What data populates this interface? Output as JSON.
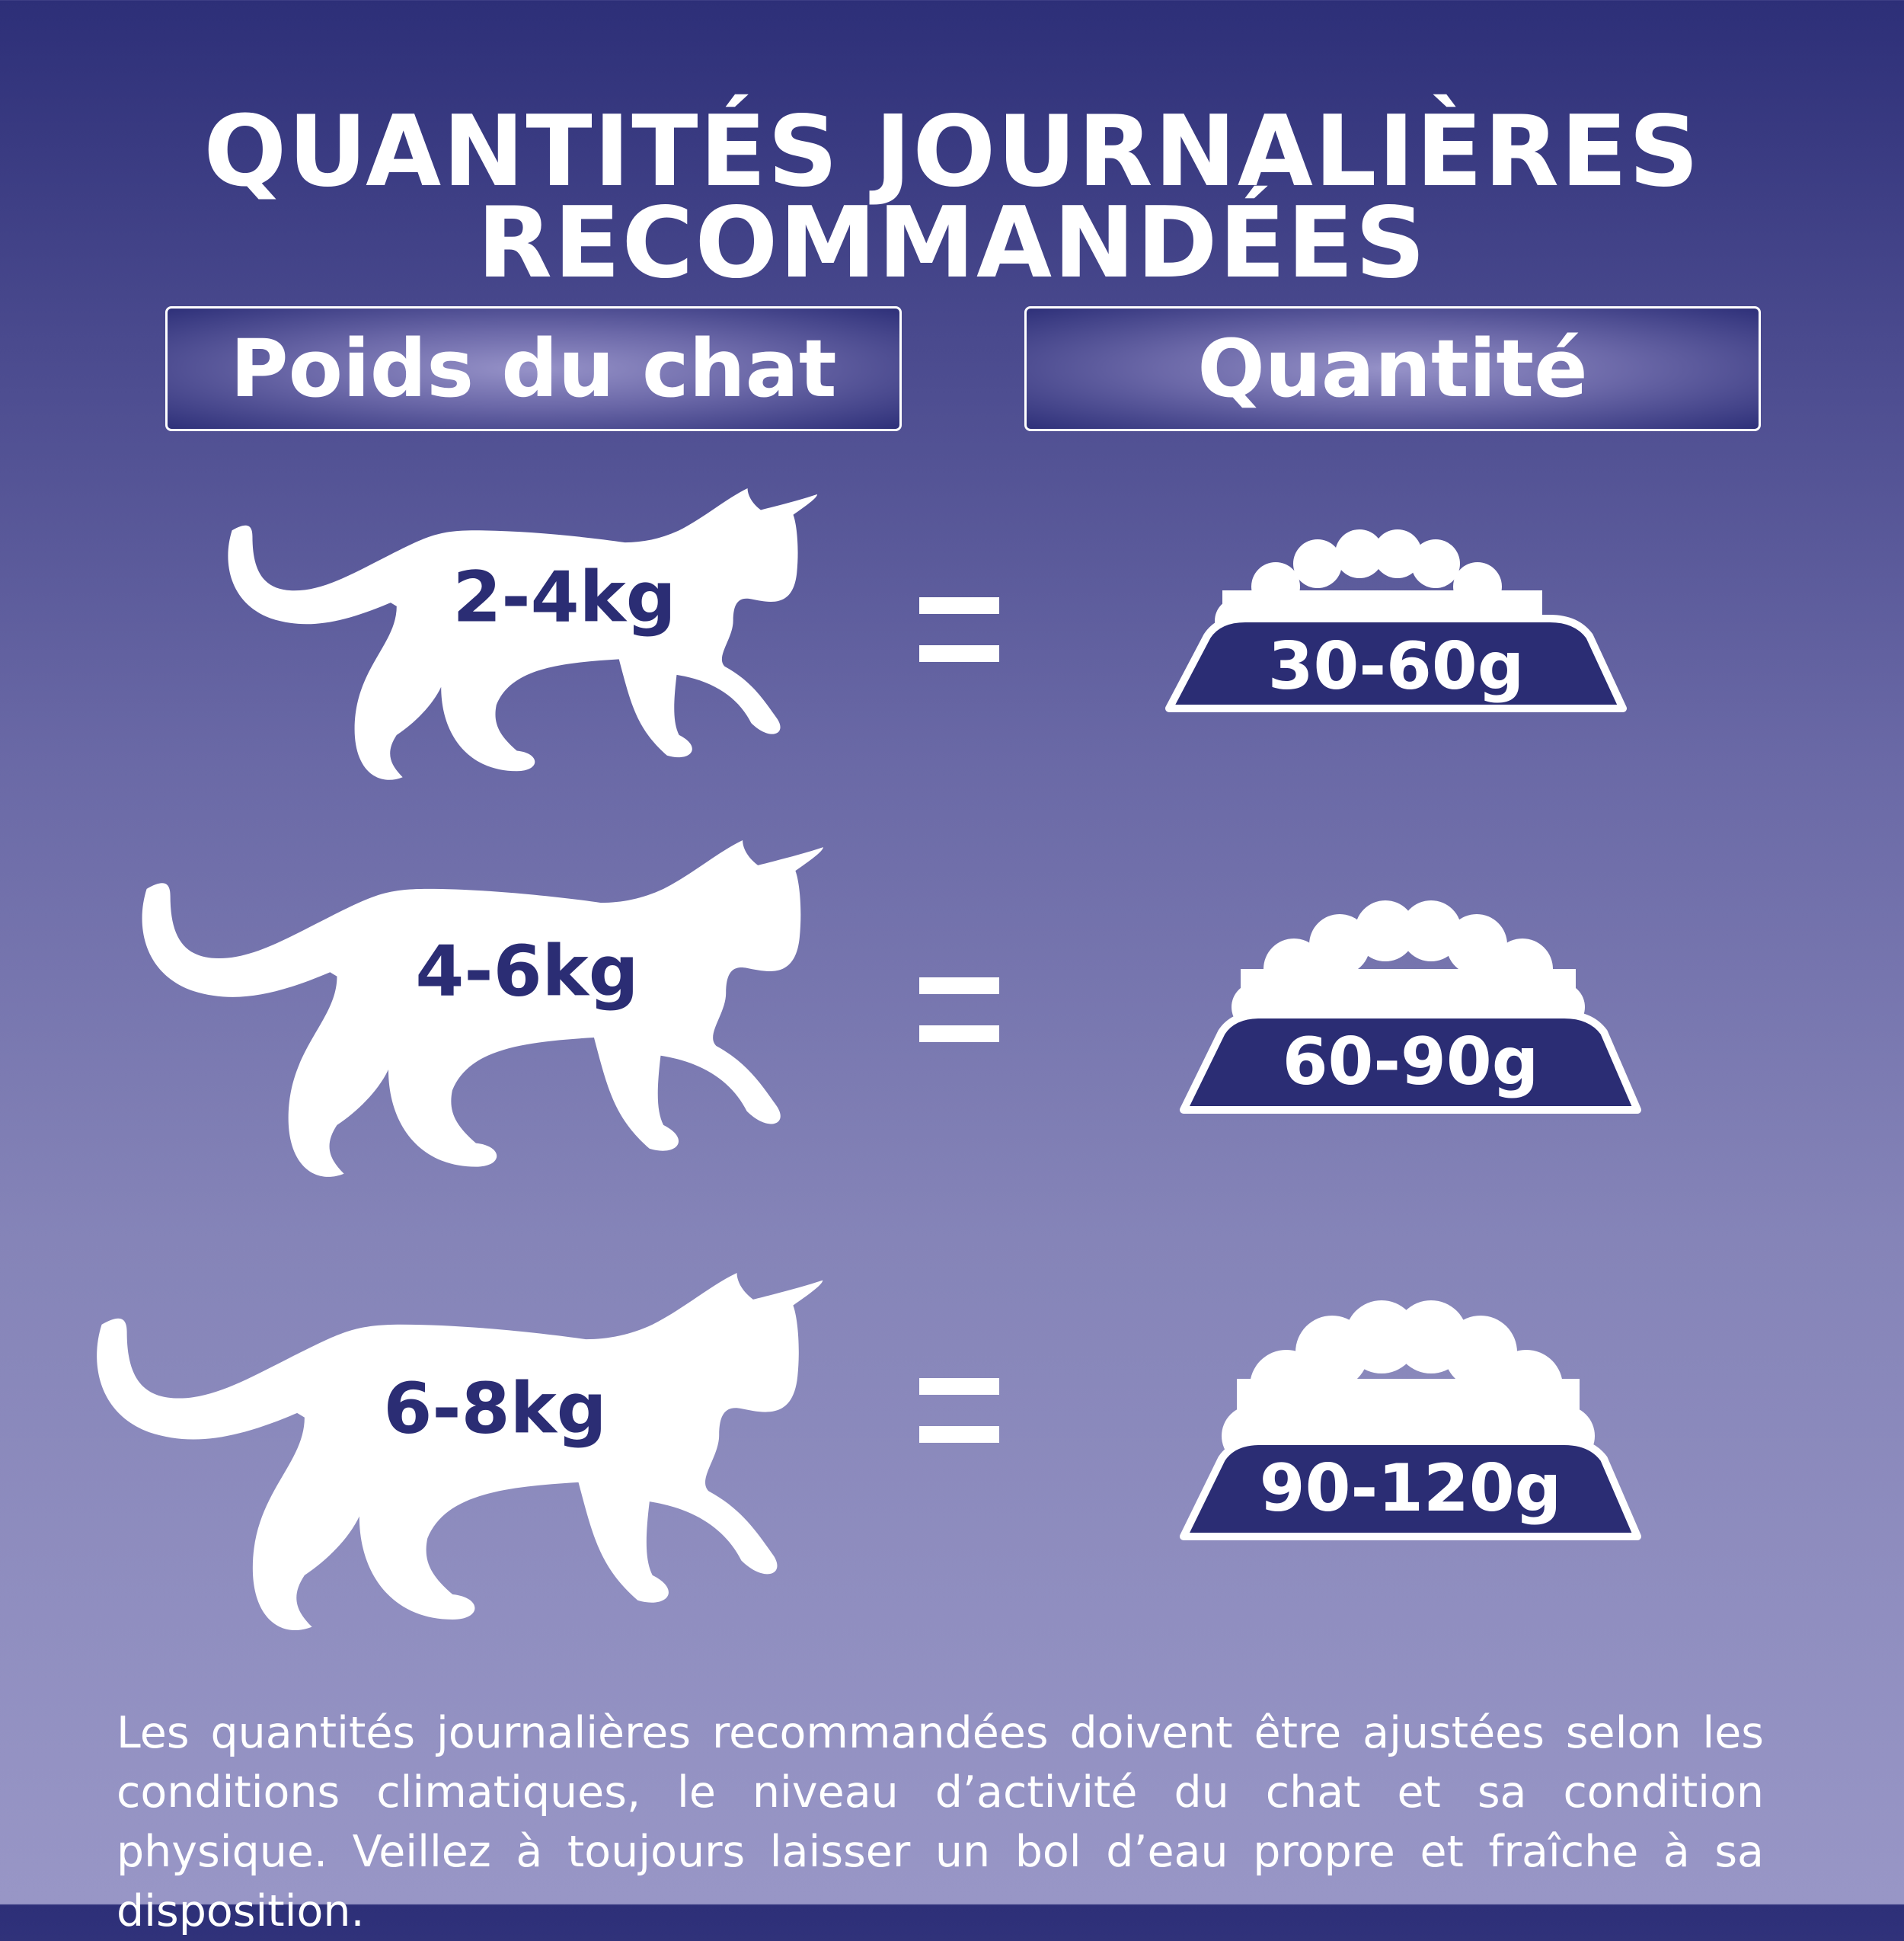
{
  "title": {
    "line1": "QUANTITÉS JOURNALIÈRES",
    "line2": "RECOMMANDÉES"
  },
  "headers": {
    "weight": "Poids du chat",
    "quantity": "Quantité"
  },
  "rows": [
    {
      "weight": "2-4kg",
      "quantity": "30-60g"
    },
    {
      "weight": "4-6kg",
      "quantity": "60-90g"
    },
    {
      "weight": "6-8kg",
      "quantity": "90-120g"
    }
  ],
  "footer": "Les quantités journalières recommandées doivent être ajustées selon les conditions climatiques, le niveau d’activité du chat et sa condition physique. Veillez à toujours laisser un bol d’eau propre et fraîche à sa disposition.",
  "colors": {
    "navy": "#2b2d74",
    "background_top": "#2d2f78",
    "background_bottom": "#9896c6"
  }
}
